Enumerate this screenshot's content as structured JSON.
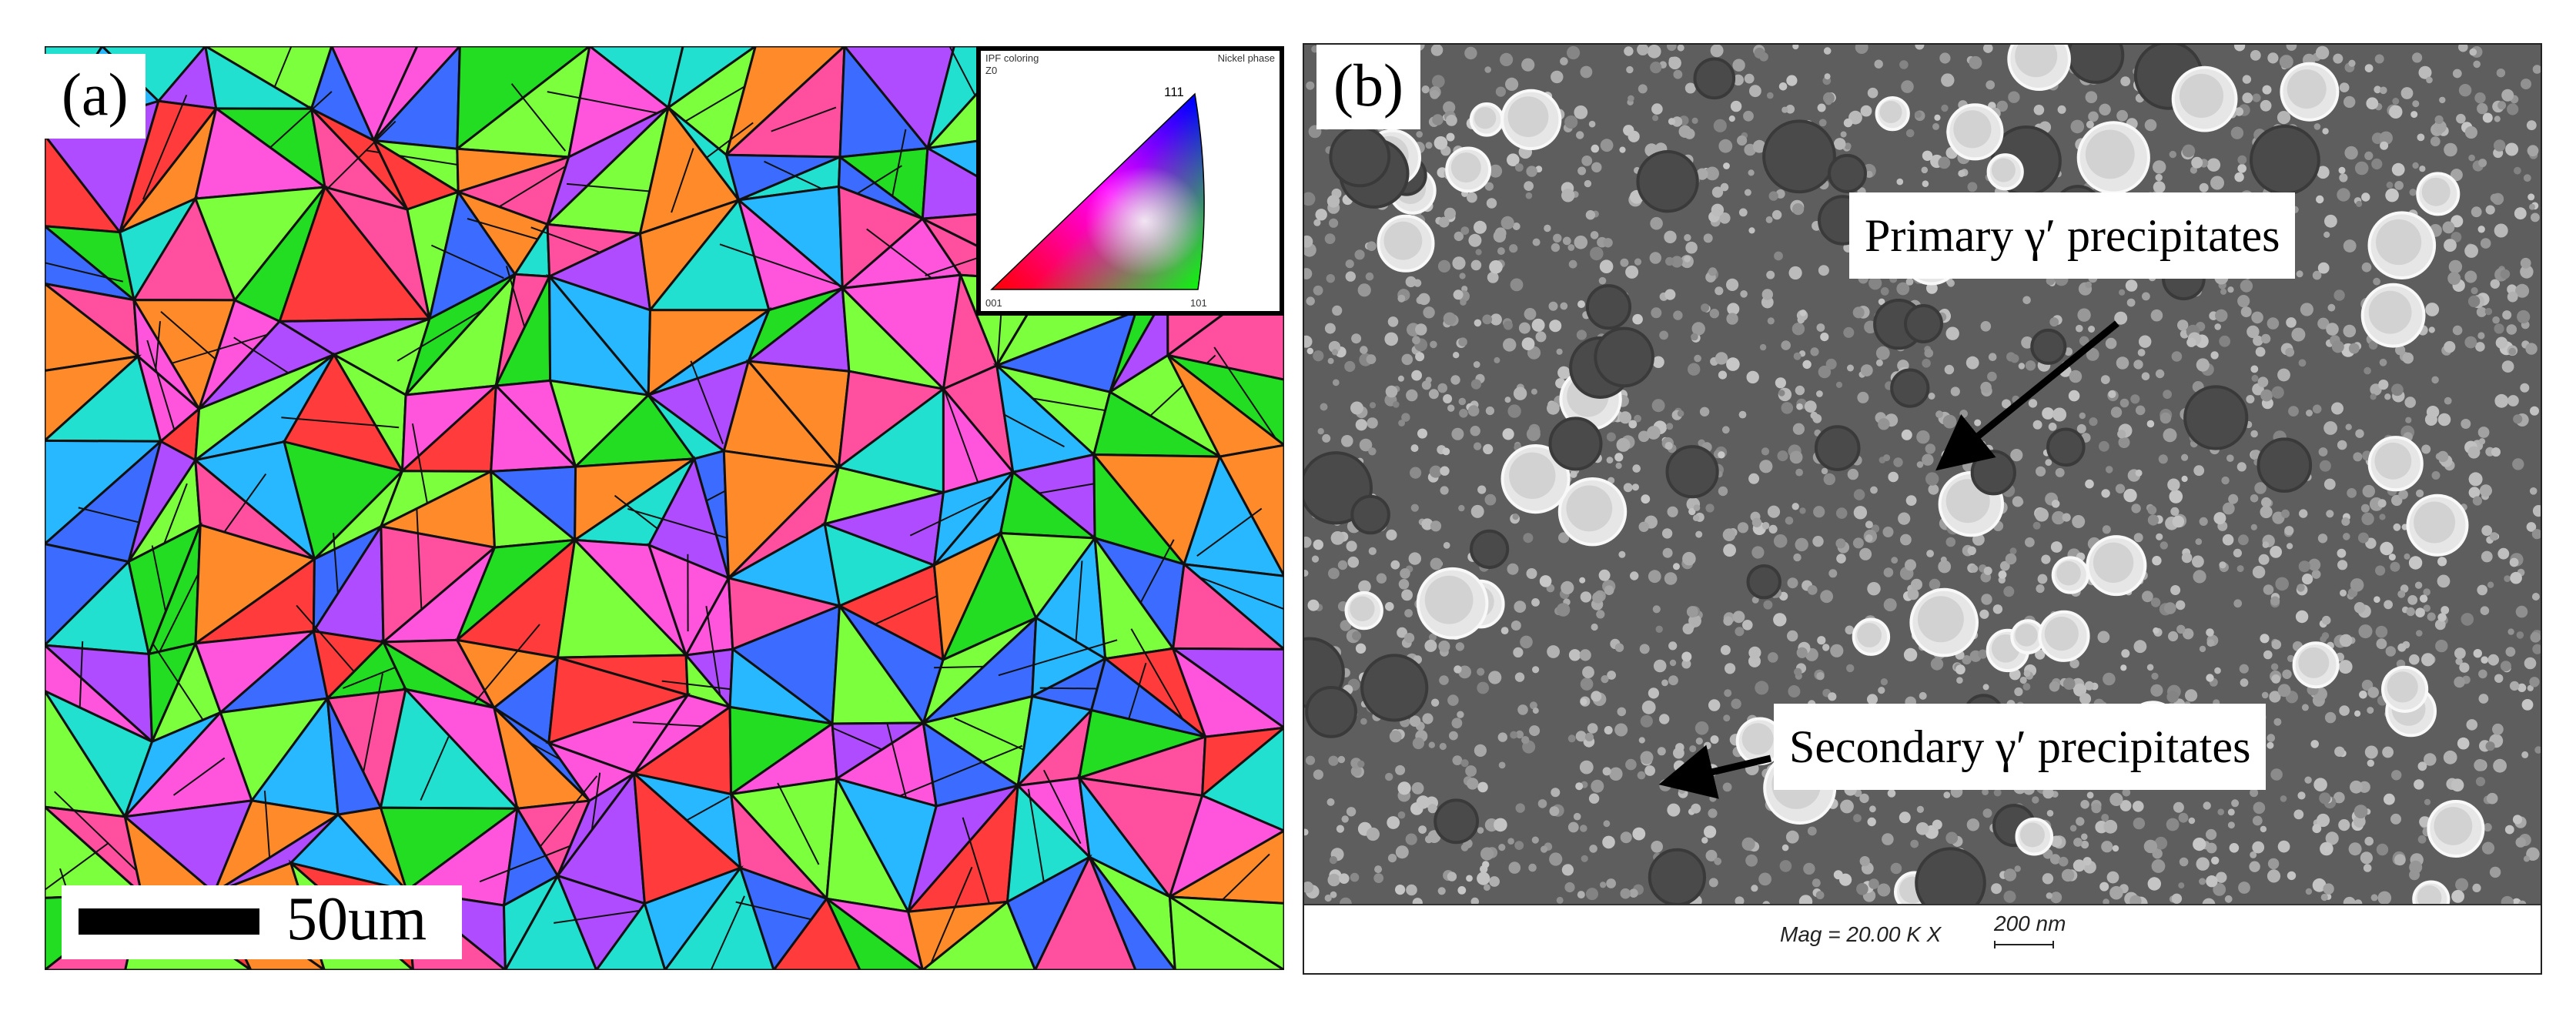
{
  "figure": {
    "panel_a": {
      "label": "(a)",
      "scale_bar_text": "50um",
      "ipf_legend": {
        "header_left": "IPF coloring",
        "header_left_sub": "Z0",
        "header_right": "Nickel phase",
        "corner_top": "111",
        "corner_left": "001",
        "corner_right": "101"
      }
    },
    "panel_b": {
      "label": "(b)",
      "callout_primary": "Primary γ′ precipitates",
      "callout_secondary": "Secondary γ′ precipitates",
      "footer_magnification": "Mag = 20.00 K X",
      "footer_scale": "200 nm"
    }
  },
  "colors": {
    "grain_palette": [
      "#22dd22",
      "#ff3b3b",
      "#3b6cff",
      "#ff55dd",
      "#22e0d0",
      "#ff8a2a",
      "#b04cff",
      "#7cff3c",
      "#ff4f9e",
      "#27b8ff"
    ],
    "sem_background": "#5e5e5e",
    "precipitate_light": "#e6e6e6",
    "precipitate_dark": "#4a4a4a"
  }
}
